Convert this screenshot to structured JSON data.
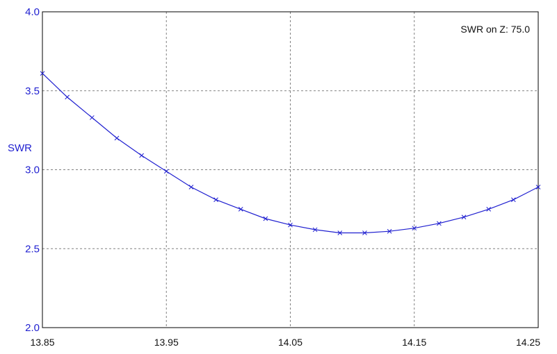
{
  "chart_data": {
    "type": "line",
    "ylabel": "SWR",
    "annotation": "SWR on Z: 75.0",
    "xlim": [
      13.85,
      14.25
    ],
    "ylim": [
      2.0,
      4.0
    ],
    "x_ticks": [
      "13.85",
      "13.95",
      "14.05",
      "14.15",
      "14.25"
    ],
    "y_ticks": [
      "2.0",
      "2.5",
      "3.0",
      "3.5",
      "4.0"
    ],
    "grid": true,
    "colors": {
      "line": "#1f1fd0",
      "axis_text": "#1f1fd0",
      "grid": "#808080",
      "frame": "#000000"
    },
    "series": [
      {
        "x": [
          13.85,
          13.87,
          13.89,
          13.91,
          13.93,
          13.95,
          13.97,
          13.99,
          14.01,
          14.03,
          14.05,
          14.07,
          14.09,
          14.11,
          14.13,
          14.15,
          14.17,
          14.19,
          14.21,
          14.23,
          14.25
        ],
        "y": [
          3.61,
          3.46,
          3.33,
          3.2,
          3.09,
          2.99,
          2.89,
          2.81,
          2.75,
          2.69,
          2.65,
          2.62,
          2.6,
          2.6,
          2.61,
          2.63,
          2.66,
          2.7,
          2.75,
          2.81,
          2.89
        ]
      }
    ]
  }
}
